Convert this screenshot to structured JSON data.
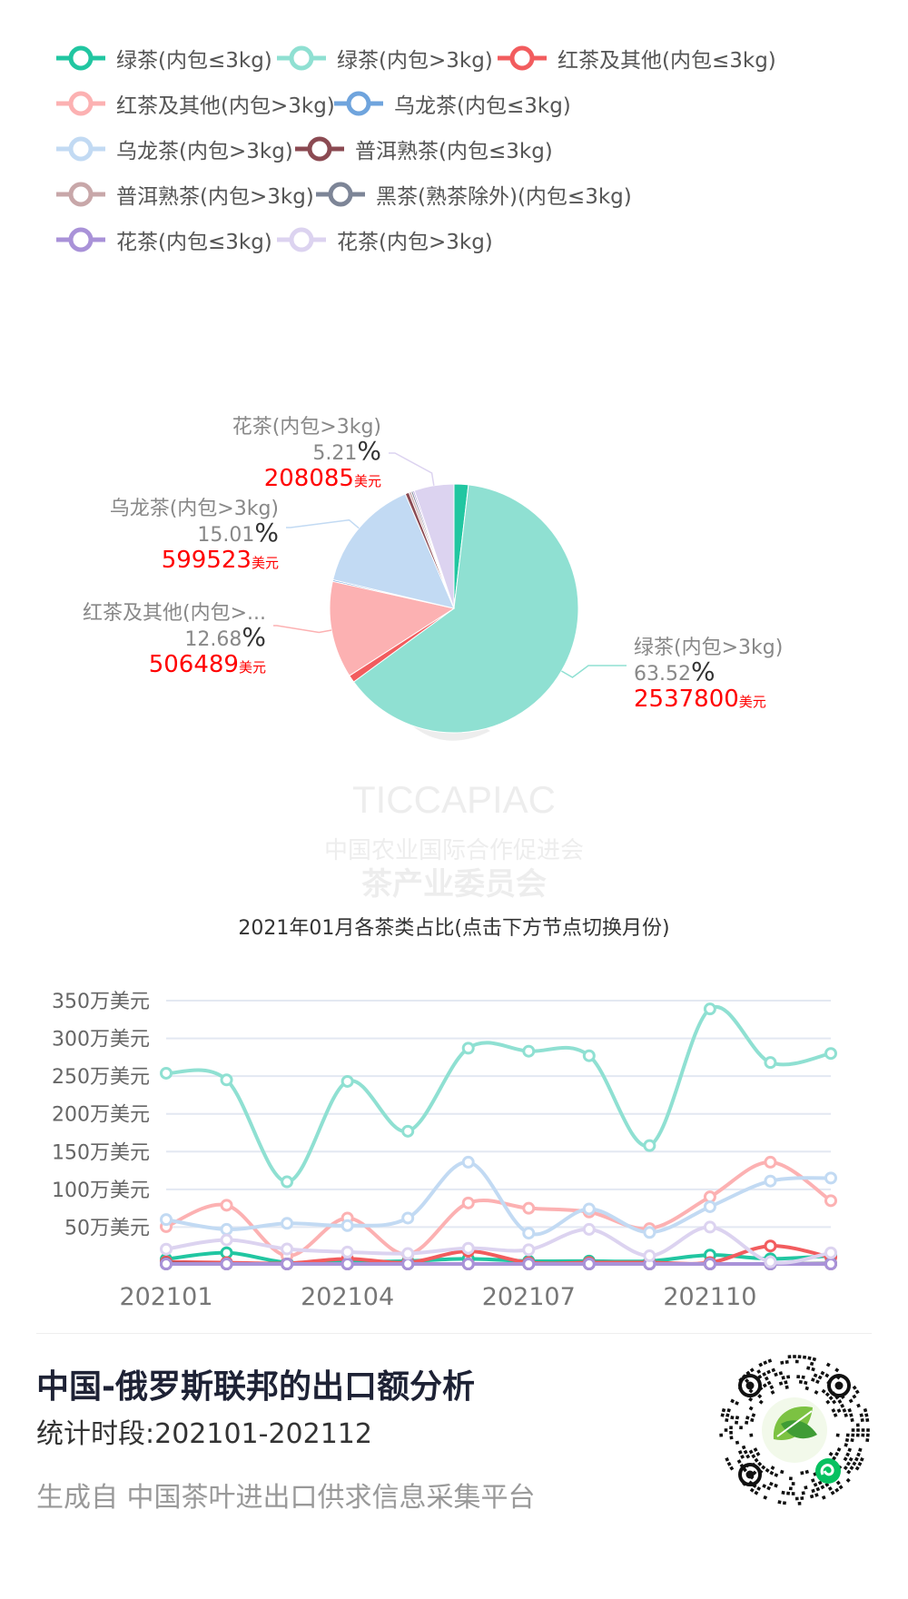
{
  "chart_data": [
    {
      "type": "pie",
      "caption": "2021年01月各茶类占比(点击下方节点切换月份)",
      "value_unit": "美元",
      "percent_sign": "%",
      "slices": [
        {
          "label": "绿茶(内包≤3kg)",
          "percent": 1.87,
          "value": 74700,
          "color": "#21c6a1"
        },
        {
          "label": "绿茶(内包>3kg)",
          "display_label": "绿茶(内包>3kg)",
          "percent": 63.52,
          "value": 2537800,
          "color": "#8fe0d2"
        },
        {
          "label": "红茶及其他(内包≤3kg)",
          "percent": 0.97,
          "value": 38800,
          "color": "#f25c5e"
        },
        {
          "label": "红茶及其他(内包>3kg)",
          "display_label": "红茶及其他(内包>...",
          "percent": 12.68,
          "value": 506489,
          "color": "#fcb1b2"
        },
        {
          "label": "乌龙茶(内包≤3kg)",
          "percent": 0.2,
          "value": 8000,
          "color": "#6fa4dd"
        },
        {
          "label": "乌龙茶(内包>3kg)",
          "display_label": "乌龙茶(内包>3kg)",
          "percent": 15.01,
          "value": 599523,
          "color": "#c2daf3"
        },
        {
          "label": "普洱熟茶(内包≤3kg)",
          "percent": 0.5,
          "value": 20000,
          "color": "#8b4a52"
        },
        {
          "label": "普洱熟茶(内包>3kg)",
          "percent": 0.3,
          "value": 12000,
          "color": "#c8a7a9"
        },
        {
          "label": "黑茶(熟茶除外)(内包≤3kg)",
          "percent": 0.24,
          "value": 9600,
          "color": "#7d8597"
        },
        {
          "label": "花茶(内包≤3kg)",
          "percent": 0.2,
          "value": 8000,
          "color": "#a992d8"
        },
        {
          "label": "花茶(内包>3kg)",
          "display_label": "花茶(内包>3kg)",
          "percent": 5.21,
          "value": 208085,
          "color": "#dcd3f0"
        }
      ]
    },
    {
      "type": "line",
      "x": [
        "202101",
        "202102",
        "202103",
        "202104",
        "202105",
        "202106",
        "202107",
        "202108",
        "202109",
        "202110",
        "202111",
        "202112"
      ],
      "x_tick_labels": [
        "202101",
        "202104",
        "202107",
        "202110"
      ],
      "y_unit": "万美元",
      "y_ticks": [
        50,
        100,
        150,
        200,
        250,
        300,
        350
      ],
      "y_tick_labels": [
        "50万美元",
        "100万美元",
        "150万美元",
        "200万美元",
        "250万美元",
        "300万美元",
        "350万美元"
      ],
      "ylim": [
        0,
        350
      ],
      "grid": true,
      "smooth": true,
      "series": [
        {
          "name": "绿茶(内包≤3kg)",
          "color": "#21c6a1",
          "values": [
            7.5,
            16,
            3,
            4,
            5,
            8,
            5,
            5,
            5,
            13,
            8,
            12
          ]
        },
        {
          "name": "绿茶(内包>3kg)",
          "color": "#8fe0d2",
          "values": [
            253.8,
            245,
            110,
            243,
            177,
            287,
            283,
            277,
            158,
            339,
            268,
            280
          ]
        },
        {
          "name": "红茶及其他(内包≤3kg)",
          "color": "#f25c5e",
          "values": [
            3.9,
            3,
            2,
            8,
            3,
            18,
            3,
            3,
            3,
            3,
            25,
            10
          ]
        },
        {
          "name": "红茶及其他(内包>3kg)",
          "color": "#fcb1b2",
          "values": [
            50.6,
            79,
            12,
            62,
            14,
            82,
            75,
            70,
            48,
            90,
            136,
            85
          ]
        },
        {
          "name": "乌龙茶(内包≤3kg)",
          "color": "#6fa4dd",
          "values": [
            0.8,
            1,
            1,
            1,
            1,
            1,
            1,
            1,
            1,
            1,
            1,
            1
          ]
        },
        {
          "name": "乌龙茶(内包>3kg)",
          "color": "#c2daf3",
          "values": [
            60,
            47,
            55,
            52,
            62,
            136,
            42,
            74,
            43,
            77,
            111,
            115
          ]
        },
        {
          "name": "普洱熟茶(内包≤3kg)",
          "color": "#8b4a52",
          "values": [
            2,
            1,
            1,
            1,
            1,
            1,
            1,
            1,
            1,
            1,
            1,
            1
          ]
        },
        {
          "name": "普洱熟茶(内包>3kg)",
          "color": "#c8a7a9",
          "values": [
            1.2,
            1,
            1,
            1,
            1,
            1,
            1,
            1,
            1,
            1,
            1,
            1
          ]
        },
        {
          "name": "黑茶(熟茶除外)(内包≤3kg)",
          "color": "#7d8597",
          "values": [
            1,
            0.5,
            0.5,
            0.5,
            0.5,
            0.5,
            0.5,
            0.5,
            0.5,
            0.5,
            0.5,
            2
          ]
        },
        {
          "name": "花茶(内包≤3kg)",
          "color": "#a992d8",
          "values": [
            0.8,
            0.5,
            0.5,
            0.5,
            0.5,
            0.5,
            0.5,
            0.5,
            0.5,
            0.5,
            0.5,
            0.5
          ]
        },
        {
          "name": "花茶(内包>3kg)",
          "color": "#dcd3f0",
          "values": [
            20.8,
            33,
            21,
            17,
            15,
            22,
            20,
            47,
            12,
            50,
            4,
            16
          ]
        }
      ]
    }
  ],
  "watermark": {
    "brand": "TICCAPIAC",
    "line1": "中国农业国际合作促进会",
    "line2": "茶产业委员会"
  },
  "footer": {
    "title": "中国-俄罗斯联邦的出口额分析",
    "period": "统计时段:202101-202112",
    "source": "生成自 中国茶叶进出口供求信息采集平台"
  },
  "qr_icon": "mini-program-qr-code-icon"
}
